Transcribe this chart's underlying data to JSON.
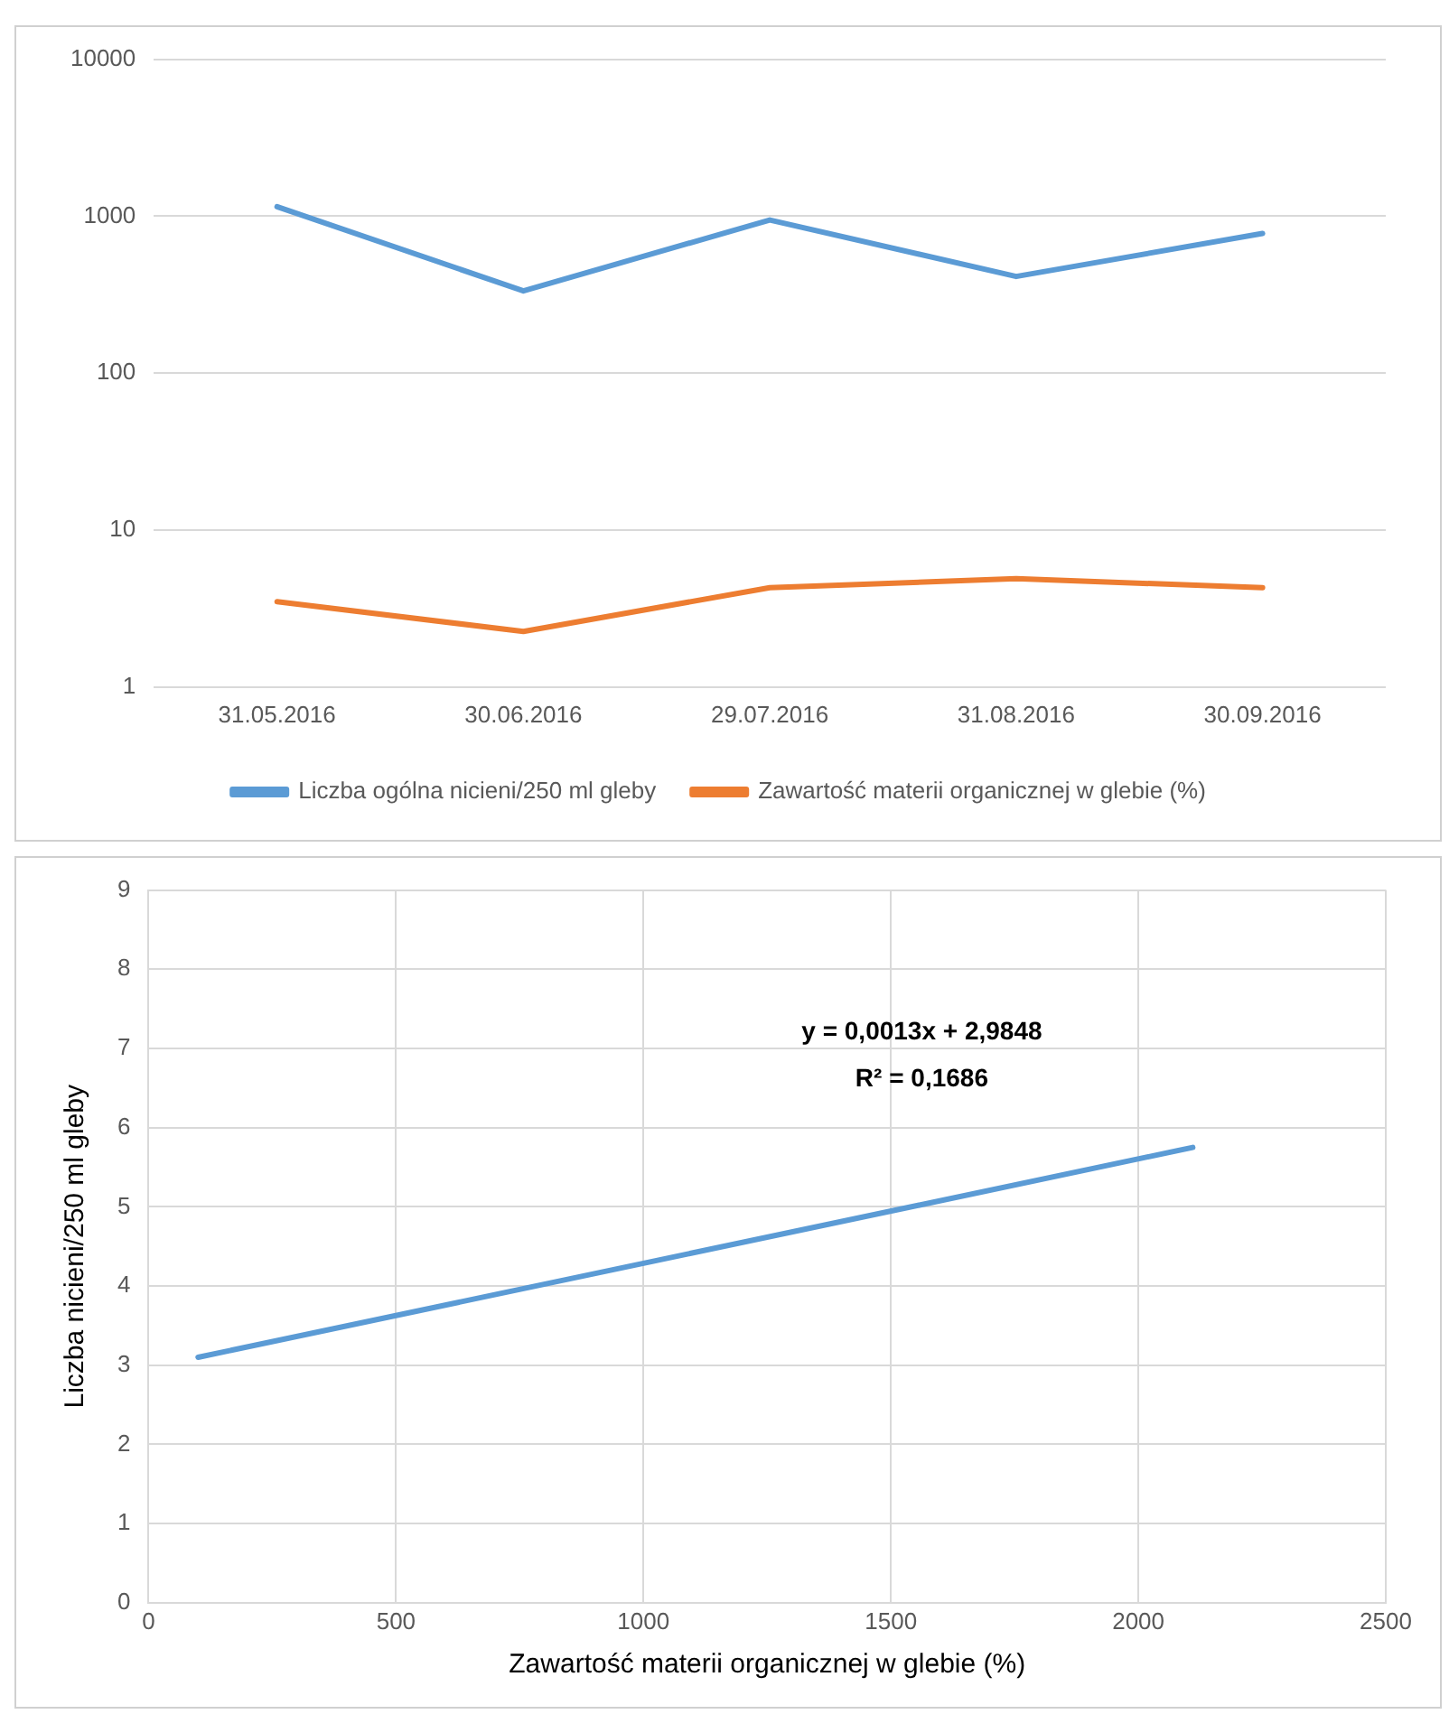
{
  "chart_data": [
    {
      "type": "line",
      "categories": [
        "31.05.2016",
        "30.06.2016",
        "29.07.2016",
        "31.08.2016",
        "30.09.2016"
      ],
      "series": [
        {
          "name": "Liczba ogólna nicieni/250 ml gleby",
          "color": "#5b9bd5",
          "values": [
            1150,
            334,
            946,
            413,
            776
          ]
        },
        {
          "name": "Zawartość materii organicznej w glebie (%)",
          "color": "#ed7d31",
          "values": [
            3.5,
            2.26,
            4.3,
            4.9,
            4.3
          ]
        }
      ],
      "log": "y",
      "ylim": [
        1,
        10000
      ],
      "yticks": [
        1,
        10,
        100,
        1000,
        10000
      ],
      "grid": "y",
      "legend": "bottom",
      "marker": "none"
    },
    {
      "type": "line",
      "xlabel": "Zawartość materii organicznej w glebie (%)",
      "ylabel": "Liczba nicieni/250 ml gleby",
      "series": [
        {
          "color": "#5b9bd5",
          "x": [
            100,
            2110
          ],
          "values": [
            3.1,
            5.75
          ]
        }
      ],
      "xlim": [
        0,
        2500
      ],
      "xticks": [
        0,
        500,
        1000,
        1500,
        2000,
        2500
      ],
      "ylim": [
        0,
        9
      ],
      "yticks": [
        0,
        1,
        2,
        3,
        4,
        5,
        6,
        7,
        8,
        9
      ],
      "grid": true,
      "marker": "none",
      "annotations": [
        "y = 0,0013x + 2,9848",
        "R² = 0,1686"
      ]
    }
  ]
}
